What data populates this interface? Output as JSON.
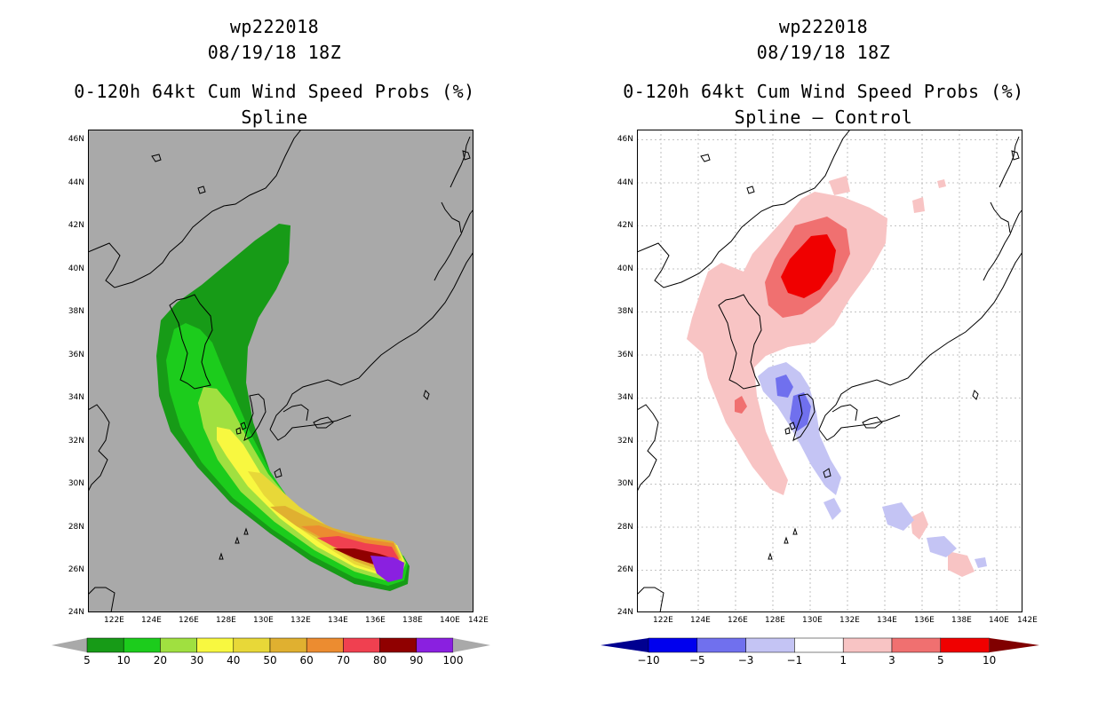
{
  "left_panel": {
    "title_line1": "wp222018",
    "title_line2": "08/19/18 18Z",
    "title_line3": "0-120h 64kt Cum Wind Speed Probs (%)",
    "title_line4": "Spline",
    "background_color": "#a9a9a9",
    "colorbar_labels": [
      "5",
      "10",
      "20",
      "30",
      "40",
      "50",
      "60",
      "70",
      "80",
      "90",
      "100"
    ],
    "colorbar_colors": [
      "#179b17",
      "#1ccc1c",
      "#a0e040",
      "#f8f840",
      "#e8d838",
      "#e0b030",
      "#ec8c30",
      "#f04050",
      "#900000",
      "#8a20e0"
    ],
    "colorbar_end_color": "#a9a9a9"
  },
  "right_panel": {
    "title_line1": "wp222018",
    "title_line2": "08/19/18 18Z",
    "title_line3": "0-120h 64kt Cum Wind Speed Probs (%)",
    "title_line4": "Spline – Control",
    "background_color": "#ffffff",
    "colorbar_labels": [
      "−10",
      "−5",
      "−3",
      "−1",
      "1",
      "3",
      "5",
      "10"
    ],
    "colorbar_colors": [
      "#0000ee",
      "#7070ee",
      "#c4c4f4",
      "#ffffff",
      "#f8c4c4",
      "#f07070",
      "#f00000"
    ],
    "colorbar_low_end": "#000090",
    "colorbar_high_end": "#800000"
  },
  "axes": {
    "lat_labels": [
      "46N",
      "44N",
      "42N",
      "40N",
      "38N",
      "36N",
      "34N",
      "32N",
      "30N",
      "28N",
      "26N",
      "24N"
    ],
    "lon_labels": [
      "122E",
      "124E",
      "126E",
      "128E",
      "130E",
      "132E",
      "134E",
      "136E",
      "138E",
      "140E",
      "142E"
    ]
  }
}
